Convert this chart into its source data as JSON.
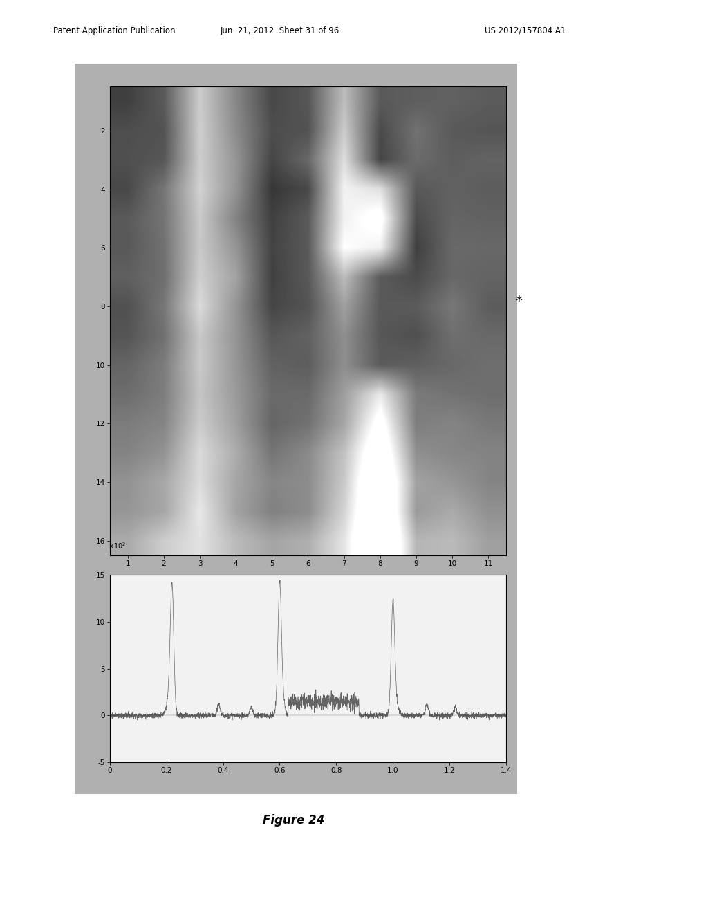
{
  "header_left": "Patent Application Publication",
  "header_mid": "Jun. 21, 2012  Sheet 31 of 96",
  "header_right": "US 2012/157804 A1",
  "figure_label": "Figure 24",
  "star_label": "*",
  "heatmap_rows": 16,
  "heatmap_cols": 11,
  "heatmap_yticks": [
    2,
    4,
    6,
    8,
    10,
    12,
    14,
    16
  ],
  "heatmap_xticks": [
    1,
    2,
    3,
    4,
    5,
    6,
    7,
    8,
    9,
    10,
    11
  ],
  "signal_yticks": [
    -5,
    0,
    5,
    10,
    15
  ],
  "signal_xticks": [
    0,
    0.2,
    0.4,
    0.6,
    0.8,
    1.0,
    1.2,
    1.4
  ],
  "signal_xlim": [
    0,
    1.4
  ],
  "signal_ylim": [
    -5,
    15
  ],
  "outer_bg": "#bbbbbb",
  "inner_bg": "#cccccc",
  "plot_bg": "#e8e8e8"
}
